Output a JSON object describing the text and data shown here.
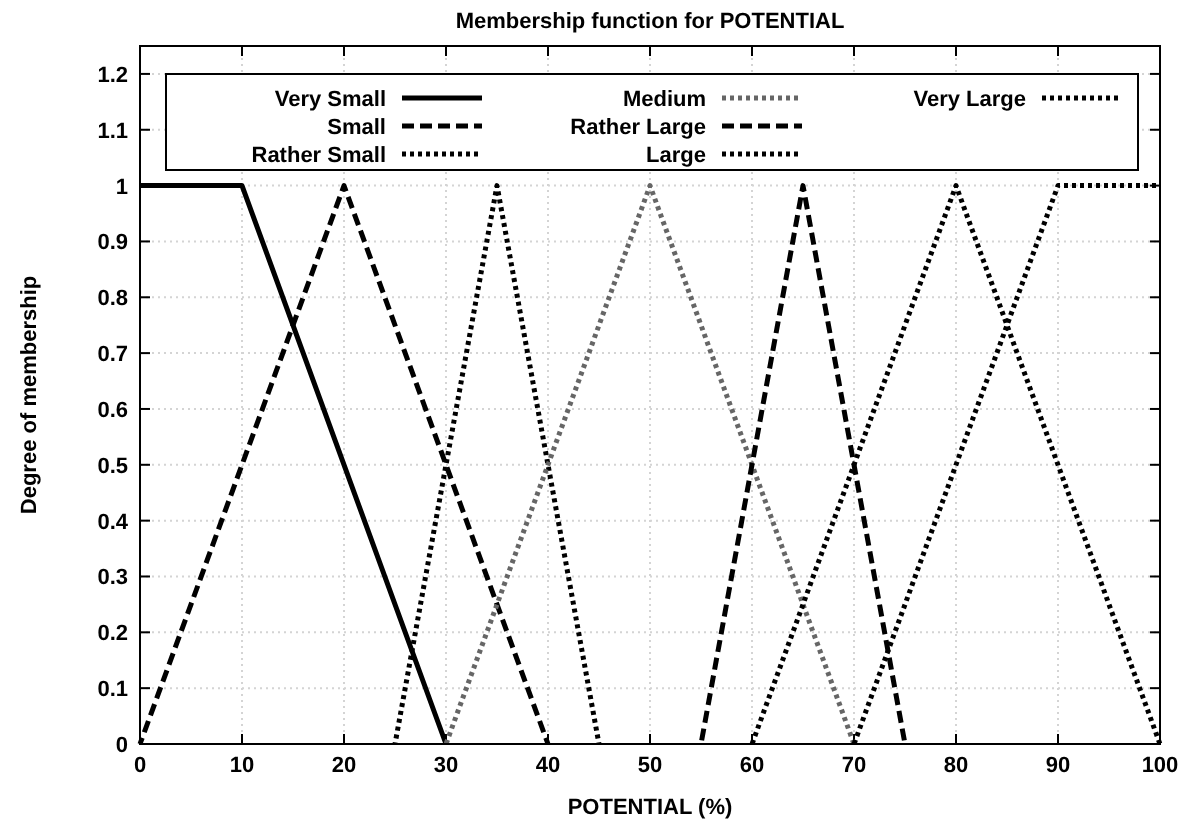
{
  "chart_data": {
    "type": "line",
    "title": "Membership function for POTENTIAL",
    "xlabel": "POTENTIAL (%)",
    "ylabel": "Degree of membership",
    "xlim": [
      0,
      100
    ],
    "xticks": [
      0,
      10,
      20,
      30,
      40,
      50,
      60,
      70,
      80,
      90,
      100
    ],
    "ylim": [
      0,
      1.25
    ],
    "yticks": [
      0,
      0.1,
      0.2,
      0.3,
      0.4,
      0.5,
      0.6,
      0.7,
      0.8,
      0.9,
      1,
      1.1,
      1.2
    ],
    "grid": true,
    "legend": "top",
    "marker": "none",
    "series": [
      {
        "name": "Very Small",
        "color": "#000000",
        "line_style": "solid",
        "x": [
          0,
          10,
          30
        ],
        "values": [
          1,
          1,
          0
        ]
      },
      {
        "name": "Small",
        "color": "#000000",
        "line_style": "dashed",
        "x": [
          0,
          20,
          40
        ],
        "values": [
          0,
          1,
          0
        ]
      },
      {
        "name": "Rather Small",
        "color": "#000000",
        "line_style": "dotted",
        "x": [
          25,
          35,
          45
        ],
        "values": [
          0,
          1,
          0
        ]
      },
      {
        "name": "Medium",
        "color": "#666666",
        "line_style": "dotted",
        "x": [
          30,
          50,
          70
        ],
        "values": [
          0,
          1,
          0
        ]
      },
      {
        "name": "Rather Large",
        "color": "#000000",
        "line_style": "dashed",
        "x": [
          55,
          65,
          75
        ],
        "values": [
          0,
          1,
          0
        ]
      },
      {
        "name": "Large",
        "color": "#000000",
        "line_style": "dotted",
        "x": [
          60,
          80,
          100
        ],
        "values": [
          0,
          1,
          0
        ]
      },
      {
        "name": "Very Large",
        "color": "#000000",
        "line_style": "dotted",
        "x": [
          70,
          90,
          100
        ],
        "values": [
          0,
          1,
          1
        ]
      }
    ]
  }
}
